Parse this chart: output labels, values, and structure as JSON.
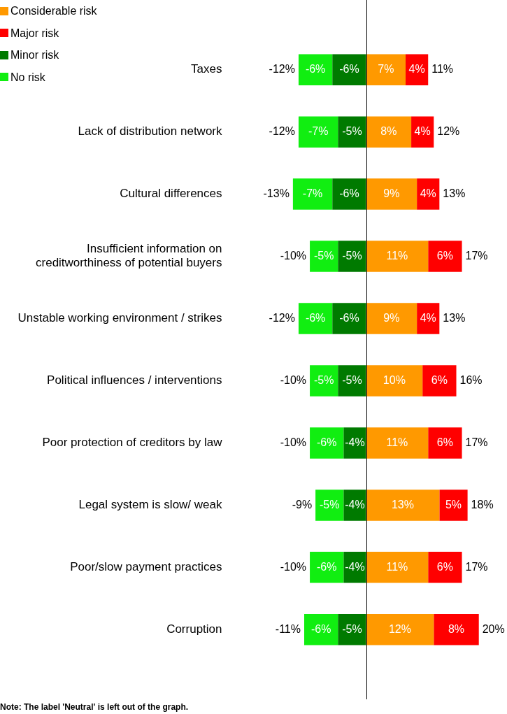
{
  "chart_data": {
    "type": "bar",
    "orientation": "horizontal",
    "stacked": true,
    "legend": "top left",
    "grid": false,
    "tick_labels": "y",
    "categories": [
      "Taxes",
      "Lack of distribution network",
      "Cultural differences",
      "Insufficient information on creditworthiness of potential buyers",
      "Unstable working environment / strikes",
      "Political influences / interventions",
      "Poor protection of creditors by law",
      "Legal system is slow/ weak",
      "Poor/slow payment practices",
      "Corruption"
    ],
    "series": [
      {
        "name": "Considerable risk",
        "color": "#ff9900",
        "values": [
          7,
          8,
          9,
          11,
          9,
          10,
          11,
          13,
          11,
          12
        ],
        "value_labels": [
          "7%",
          "8%",
          "9%",
          "11%",
          "9%",
          "10%",
          "11%",
          "13%",
          "11%",
          "12%"
        ]
      },
      {
        "name": "Major risk",
        "color": "#ff0000",
        "values": [
          4,
          4,
          4,
          6,
          4,
          6,
          6,
          5,
          6,
          8
        ],
        "value_labels": [
          "4%",
          "4%",
          "4%",
          "6%",
          "4%",
          "6%",
          "6%",
          "5%",
          "6%",
          "8%"
        ]
      },
      {
        "name": "Minor risk",
        "color": "#007a00",
        "values": [
          -6,
          -5,
          -6,
          -5,
          -6,
          -5,
          -4,
          -4,
          -4,
          -5
        ],
        "value_labels": [
          "-6%",
          "-5%",
          "-6%",
          "-5%",
          "-6%",
          "-5%",
          "-4%",
          "-4%",
          "-4%",
          "-5%"
        ]
      },
      {
        "name": "No risk",
        "color": "#11ee11",
        "values": [
          -6,
          -7,
          -7,
          -5,
          -6,
          -5,
          -6,
          -5,
          -6,
          -6
        ],
        "value_labels": [
          "-6%",
          "-7%",
          "-7%",
          "-5%",
          "-6%",
          "-5%",
          "-6%",
          "-5%",
          "-6%",
          "-6%"
        ]
      }
    ],
    "annotations": [
      {
        "text": "-12%",
        "x": -12,
        "y": "Taxes"
      },
      {
        "text": "11%",
        "x": 11,
        "y": "Taxes"
      },
      {
        "text": "-12%",
        "x": -12,
        "y": "Lack of distribution network"
      },
      {
        "text": "12%",
        "x": 12,
        "y": "Lack of distribution network"
      },
      {
        "text": "-13%",
        "x": -13,
        "y": "Cultural differences"
      },
      {
        "text": "13%",
        "x": 13,
        "y": "Cultural differences"
      },
      {
        "text": "-10%",
        "x": -10,
        "y": "Insufficient information on creditworthiness of potential buyers"
      },
      {
        "text": "17%",
        "x": 17,
        "y": "Insufficient information on creditworthiness of potential buyers"
      },
      {
        "text": "-12%",
        "x": -12,
        "y": "Unstable working environment / strikes"
      },
      {
        "text": "13%",
        "x": 13,
        "y": "Unstable working environment / strikes"
      },
      {
        "text": "-10%",
        "x": -10,
        "y": "Political influences / interventions"
      },
      {
        "text": "16%",
        "x": 16,
        "y": "Political influences / interventions"
      },
      {
        "text": "-10%",
        "x": -10,
        "y": "Poor protection of creditors by law"
      },
      {
        "text": "17%",
        "x": 17,
        "y": "Poor protection of creditors by law"
      },
      {
        "text": "-9%",
        "x": -9,
        "y": "Legal system is slow/ weak"
      },
      {
        "text": "18%",
        "x": 18,
        "y": "Legal system is slow/ weak"
      },
      {
        "text": "-10%",
        "x": -10,
        "y": "Poor/slow payment practices"
      },
      {
        "text": "17%",
        "x": 17,
        "y": "Poor/slow payment practices"
      },
      {
        "text": "-11%",
        "x": -11,
        "y": "Corruption"
      },
      {
        "text": "20%",
        "x": 20,
        "y": "Corruption"
      },
      "Note: The label 'Neutral' is left out of the graph."
    ]
  }
}
